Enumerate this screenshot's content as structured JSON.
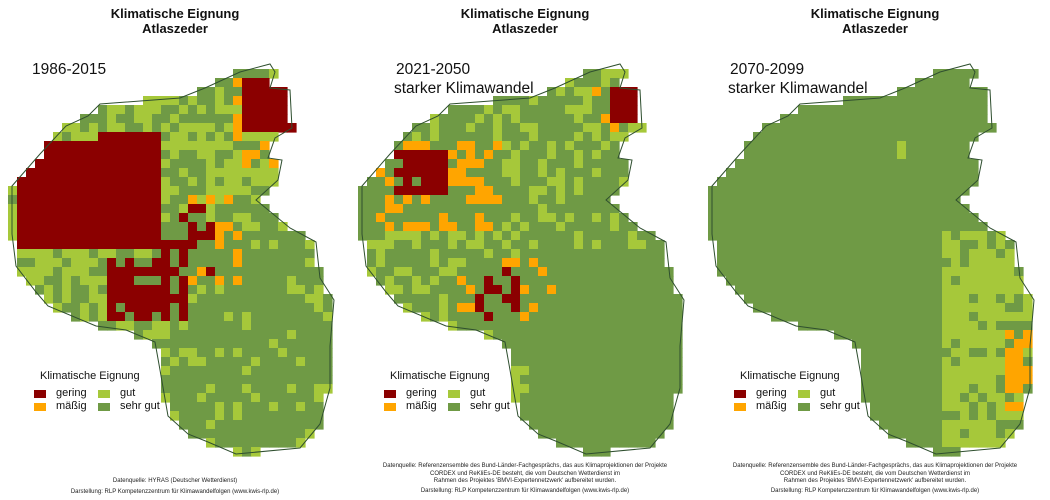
{
  "colors": {
    "gering": "#8b0000",
    "maessig": "#ffa500",
    "gut": "#a6c83a",
    "sehr_gut": "#6f9a45",
    "outline": "#2f4f2f"
  },
  "panels": [
    {
      "title_line1": "Klimatische Eignung",
      "title_line2": "Atlaszeder",
      "period_line1": "1986-2015",
      "period_line2": "",
      "legend_title": "Klimatische Eignung",
      "legend": {
        "gering": "gering",
        "maessig": "mäßig",
        "gut": "gut",
        "sehr_gut": "sehr gut"
      },
      "credit_lines": [
        "Datenquelle: HYRAS (Deutscher Wetterdienst)",
        "Darstellung: RLP Kompetenzzentrum für Klimawandelfolgen (www.kwis-rlp.de)"
      ]
    },
    {
      "title_line1": "Klimatische Eignung",
      "title_line2": "Atlaszeder",
      "period_line1": "2021-2050",
      "period_line2": "starker Klimawandel",
      "legend_title": "Klimatische Eignung",
      "legend": {
        "gering": "gering",
        "maessig": "mäßig",
        "gut": "gut",
        "sehr_gut": "sehr gut"
      },
      "credit_lines": [
        "Datenquelle: Referenzensemble des Bund-Länder-Fachgesprächs, das aus Klimaprojektionen der Projekte",
        "CORDEX und ReKliEs-DE besteht, die vom Deutschen Wetterdienst im",
        "Rahmen des Projektes 'BMVI-Expertennetzwerk' aufbereitet wurden.",
        "Darstellung: RLP Kompetenzzentrum für Klimawandelfolgen (www.kwis-rlp.de)"
      ]
    },
    {
      "title_line1": "Klimatische Eignung",
      "title_line2": "Atlaszeder",
      "period_line1": "2070-2099",
      "period_line2": "starker Klimawandel",
      "legend_title": "Klimatische Eignung",
      "legend": {
        "gering": "gering",
        "maessig": "mäßig",
        "gut": "gut",
        "sehr_gut": "sehr gut"
      },
      "credit_lines": [
        "Datenquelle: Referenzensemble des Bund-Länder-Fachgesprächs, das aus Klimaprojektionen der Projekte",
        "CORDEX und ReKliEs-DE besteht, die vom Deutschen Wetterdienst im",
        "Rahmen des Projektes 'BMVI-Expertennetzwerk' aufbereitet wurden.",
        "Darstellung: RLP Kompetenzzentrum für Klimawandelfolgen (www.kwis-rlp.de)"
      ]
    }
  ]
}
